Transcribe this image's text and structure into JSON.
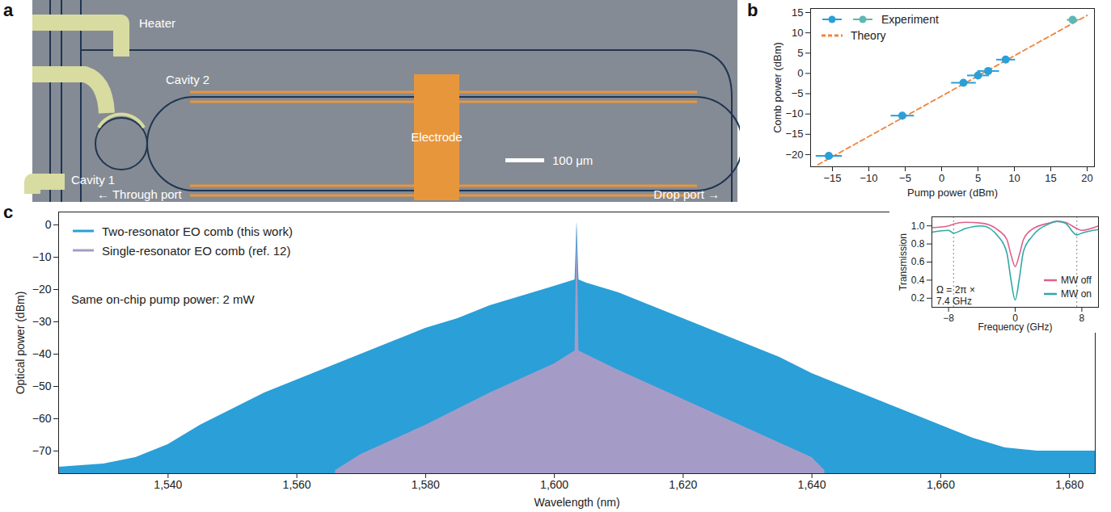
{
  "chart_data": [
    {
      "panel": "a",
      "type": "diagram",
      "labels": {
        "heater": "Heater",
        "cavity_1": "Cavity 1",
        "cavity_2": "Cavity 2",
        "electrode": "Electrode",
        "scale_bar": "100 μm",
        "through_port": "← Through port",
        "drop_port": "Drop port →"
      }
    },
    {
      "panel": "b",
      "type": "scatter",
      "xlabel": "Pump power (dBm)",
      "ylabel": "Comb power (dBm)",
      "xlim": [
        -18,
        21
      ],
      "ylim": [
        -23,
        16
      ],
      "xticks": [
        -15,
        -10,
        -5,
        0,
        5,
        10,
        15,
        20
      ],
      "yticks": [
        -20,
        -15,
        -10,
        -5,
        0,
        5,
        10,
        15
      ],
      "legend": "upper left",
      "series": [
        {
          "name": "Experiment",
          "type": "scatter",
          "marker": "circle",
          "colors": [
            "#2a9fd8",
            "#2a9fd8",
            "#2a9fd8",
            "#2a9fd8",
            "#2a9fd8",
            "#2a9fd8",
            "#5cb8b2"
          ],
          "x": [
            -15.5,
            -5.4,
            3,
            5,
            6.4,
            8.8,
            18
          ],
          "values": [
            -20.3,
            -10.4,
            -2.3,
            -0.5,
            0.6,
            3.4,
            13.2
          ],
          "xerr": [
            1.8,
            1.6,
            1.7,
            1.5,
            1.5,
            1.3,
            0.8
          ]
        },
        {
          "name": "Theory",
          "type": "line",
          "line_style": "dashed",
          "color": "#f0843c",
          "x": [
            -17,
            20
          ],
          "values": [
            -22.5,
            14.3
          ]
        }
      ]
    },
    {
      "panel": "c",
      "type": "area",
      "xlabel": "Wavelength (nm)",
      "ylabel": "Optical power (dBm)",
      "xlim": [
        1523,
        1684
      ],
      "ylim": [
        -77,
        4
      ],
      "xticks": [
        {
          "value": 1540,
          "label": "1,540"
        },
        {
          "value": 1560,
          "label": "1,560"
        },
        {
          "value": 1580,
          "label": "1,580"
        },
        {
          "value": 1600,
          "label": "1,600"
        },
        {
          "value": 1620,
          "label": "1,620"
        },
        {
          "value": 1640,
          "label": "1,640"
        },
        {
          "value": 1660,
          "label": "1,660"
        },
        {
          "value": 1680,
          "label": "1,680"
        }
      ],
      "yticks": [
        -70,
        -60,
        -50,
        -40,
        -30,
        -20,
        -10,
        0
      ],
      "legend": "upper left",
      "annotations": [
        "Same on-chip pump power: 2 mW"
      ],
      "series": [
        {
          "name": "Two-resonator EO comb (this work)",
          "color": "#2a9fd8",
          "x": [
            1523,
            1530,
            1535,
            1540,
            1545,
            1550,
            1555,
            1560,
            1565,
            1570,
            1575,
            1580,
            1585,
            1590,
            1595,
            1600,
            1603.2,
            1603.5,
            1603.8,
            1605,
            1610,
            1615,
            1620,
            1625,
            1630,
            1635,
            1640,
            1645,
            1650,
            1655,
            1660,
            1665,
            1670,
            1675,
            1684
          ],
          "values": [
            -75,
            -74,
            -72,
            -68,
            -62,
            -57,
            -52,
            -48,
            -44,
            -40,
            -36,
            -32,
            -29,
            -25,
            -22,
            -19,
            -17,
            1,
            -17,
            -18,
            -21,
            -25,
            -29,
            -33,
            -37,
            -41,
            -46,
            -50,
            -54,
            -58,
            -62,
            -66,
            -69,
            -70,
            -70
          ]
        },
        {
          "name": "Single-resonator EO comb (ref. 12)",
          "color": "#a49cc7",
          "x": [
            1566,
            1570,
            1580,
            1590,
            1600,
            1603.2,
            1603.5,
            1603.8,
            1610,
            1620,
            1630,
            1640,
            1642
          ],
          "values": [
            -76,
            -71,
            -62,
            -52,
            -43,
            -39,
            1,
            -39,
            -45,
            -54,
            -63,
            -72,
            -76
          ]
        }
      ],
      "inset": {
        "type": "line",
        "xlabel": "Frequency (GHz)",
        "ylabel": "Transmission",
        "xlim": [
          -10,
          10
        ],
        "ylim": [
          0.1,
          1.1
        ],
        "xticks": [
          -8,
          0,
          8
        ],
        "yticks": [
          0.2,
          0.4,
          0.6,
          0.8,
          {
            "value": 1,
            "label": "1.0"
          }
        ],
        "legend": "lower right",
        "annotation": "Ω = 2π × 7.4 GHz",
        "separation": 7.4,
        "x": [
          -10,
          -8,
          -7.4,
          -6,
          -4,
          -2,
          -1,
          -0.5,
          0,
          0.5,
          1,
          2,
          4,
          5,
          6,
          7.4,
          8,
          10
        ],
        "series": [
          {
            "name": "MW off",
            "color": "#e0608a",
            "values": [
              0.98,
              1.0,
              1.02,
              1.04,
              1.03,
              0.95,
              0.85,
              0.68,
              0.55,
              0.68,
              0.85,
              0.96,
              1.03,
              1.05,
              1.04,
              0.97,
              0.95,
              1.0
            ]
          },
          {
            "name": "MW on",
            "color": "#2fa8a8",
            "values": [
              0.93,
              0.95,
              0.92,
              0.97,
              1.0,
              0.88,
              0.7,
              0.4,
              0.18,
              0.42,
              0.72,
              0.88,
              1.02,
              1.05,
              1.03,
              0.9,
              0.92,
              0.96
            ]
          }
        ]
      }
    }
  ]
}
